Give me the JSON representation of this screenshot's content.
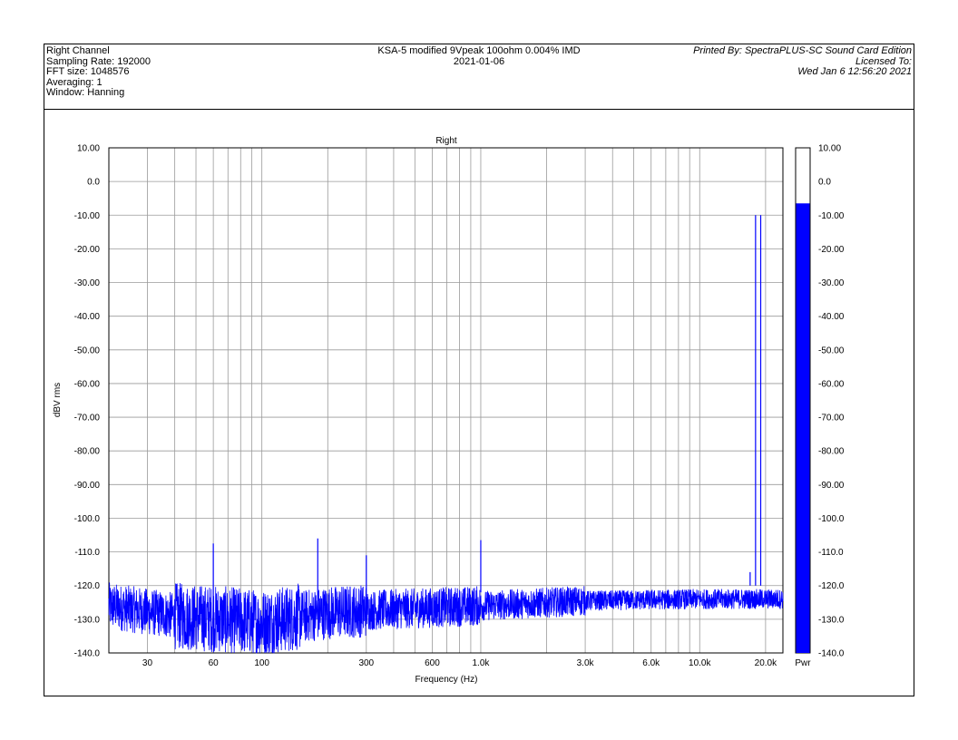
{
  "header": {
    "left_lines": [
      "Right Channel",
      "Sampling Rate: 192000",
      "FFT size: 1048576",
      "Averaging: 1",
      "Window: Hanning"
    ],
    "center_lines": [
      "KSA-5 modified 9Vpeak 100ohm 0.004% IMD",
      "2021-01-06"
    ],
    "right_lines": [
      "Printed By: SpectraPLUS-SC Sound Card Edition",
      "Licensed To:",
      "Wed Jan  6 12:56:20 2021"
    ]
  },
  "chart_data": {
    "type": "line",
    "title": "Right",
    "xlabel": "Frequency (Hz)",
    "ylabel": "dBV rms",
    "xscale": "log",
    "xlim": [
      20,
      24000
    ],
    "ylim": [
      -140,
      10
    ],
    "yticks": [
      10,
      0,
      -10,
      -20,
      -30,
      -40,
      -50,
      -60,
      -70,
      -80,
      -90,
      -100,
      -110,
      -120,
      -130,
      -140
    ],
    "ytick_labels": [
      "10.00",
      "0.0",
      "-10.00",
      "-20.00",
      "-30.00",
      "-40.00",
      "-50.00",
      "-60.00",
      "-70.00",
      "-80.00",
      "-90.00",
      "-100.0",
      "-110.0",
      "-120.0",
      "-130.0",
      "-140.0"
    ],
    "xticks": [
      30,
      60,
      100,
      300,
      600,
      1000,
      3000,
      6000,
      10000,
      20000
    ],
    "xtick_labels": [
      "30",
      "60",
      "100",
      "300",
      "600",
      "1.0k",
      "3.0k",
      "6.0k",
      "10.0k",
      "20.0k"
    ],
    "grid": true,
    "series_color": "#0000ff",
    "spectrum": {
      "floor": [
        [
          20,
          -126
        ],
        [
          40,
          -129
        ],
        [
          100,
          -131
        ],
        [
          200,
          -128
        ],
        [
          400,
          -127
        ],
        [
          1000,
          -126
        ],
        [
          3000,
          -124.5
        ],
        [
          10000,
          -124
        ],
        [
          24000,
          -124
        ]
      ],
      "peaks": [
        {
          "x": 60,
          "y": -107.5
        },
        {
          "x": 180,
          "y": -106
        },
        {
          "x": 300,
          "y": -111
        },
        {
          "x": 1000,
          "y": -106.5
        },
        {
          "x": 17000,
          "y": -116
        },
        {
          "x": 18000,
          "y": -10
        },
        {
          "x": 19000,
          "y": -10
        }
      ]
    },
    "level_meter": {
      "value": -6.5,
      "label": "Pwr",
      "range": [
        -140,
        10
      ],
      "tick_labels": [
        "10.00",
        "0.0",
        "-10.00",
        "-20.00",
        "-30.00",
        "-40.00",
        "-50.00",
        "-60.00",
        "-70.00",
        "-80.00",
        "-90.00",
        "-100.0",
        "-110.0",
        "-120.0",
        "-130.0",
        "-140.0"
      ],
      "color": "#0000ff"
    }
  }
}
